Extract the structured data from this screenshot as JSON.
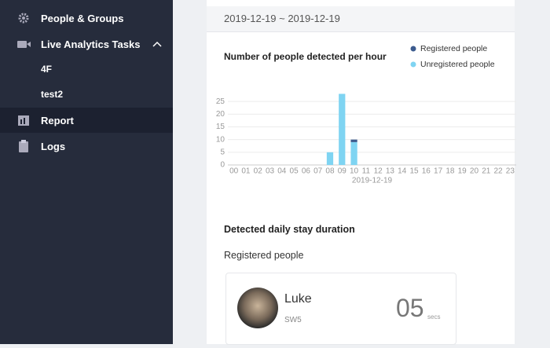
{
  "nav": [
    "People & Groups",
    "Live Analytics Tasks",
    "4F",
    "test2",
    "Report",
    "Logs"
  ],
  "date_range": "2019-12-19 ~ 2019-12-19",
  "chart_data": {
    "type": "bar",
    "stacked": true,
    "title": "Number of people detected per hour",
    "x_label": "2019-12-19",
    "categories": [
      "00",
      "01",
      "02",
      "03",
      "04",
      "05",
      "06",
      "07",
      "08",
      "09",
      "10",
      "11",
      "12",
      "13",
      "14",
      "15",
      "16",
      "17",
      "18",
      "19",
      "20",
      "21",
      "22",
      "23"
    ],
    "series": [
      {
        "name": "Registered people",
        "color": "#3c5b8e",
        "values": [
          0,
          0,
          0,
          0,
          0,
          0,
          0,
          0,
          0,
          0,
          1,
          0,
          0,
          0,
          0,
          0,
          0,
          0,
          0,
          0,
          0,
          0,
          0,
          0
        ]
      },
      {
        "name": "Unregistered people",
        "color": "#7fd4f2",
        "values": [
          0,
          0,
          0,
          0,
          0,
          0,
          0,
          0,
          5,
          28,
          9,
          0,
          0,
          0,
          0,
          0,
          0,
          0,
          0,
          0,
          0,
          0,
          0,
          0
        ]
      }
    ],
    "ylim": [
      0,
      30
    ],
    "yticks": [
      0,
      5,
      10,
      15,
      20,
      25
    ],
    "grid": true,
    "legend": "top-right"
  },
  "stay_title": "Detected daily stay duration",
  "registered_title": "Registered people",
  "person": {
    "name": "Luke",
    "location": "SW5",
    "duration": "05",
    "unit": "secs"
  }
}
